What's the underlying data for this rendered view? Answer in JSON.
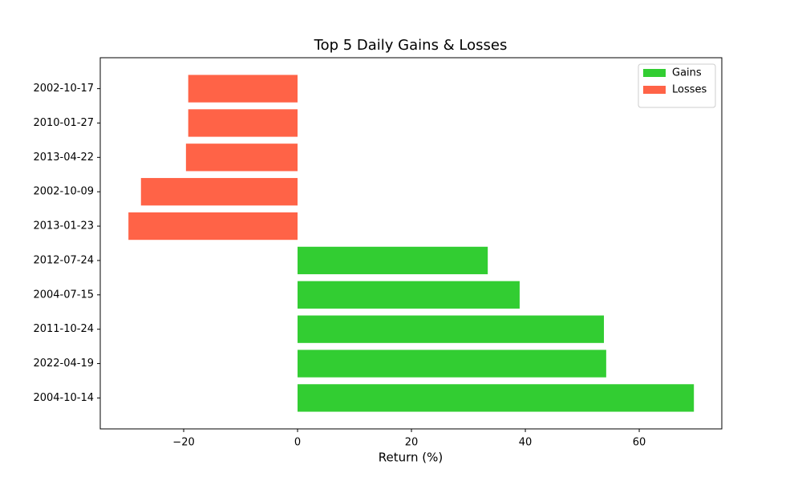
{
  "chart_data": {
    "type": "barh",
    "title": "Top 5 Daily Gains & Losses",
    "xlabel": "Return (%)",
    "categories": [
      "2004-10-14",
      "2022-04-19",
      "2011-10-24",
      "2004-07-15",
      "2012-07-24",
      "2013-01-23",
      "2002-10-09",
      "2013-04-22",
      "2010-01-27",
      "2002-10-17"
    ],
    "series": [
      {
        "name": "Gains",
        "color": "#32cd32",
        "values": [
          69.6,
          54.2,
          53.8,
          39.0,
          33.4,
          null,
          null,
          null,
          null,
          null
        ]
      },
      {
        "name": "Losses",
        "color": "#ff6347",
        "values": [
          null,
          null,
          null,
          null,
          null,
          -29.7,
          -27.5,
          -19.6,
          -19.2,
          -19.2
        ]
      }
    ],
    "xlim": [
      -34.65,
      74.5
    ],
    "xticks": [
      {
        "value": -20,
        "label": "−20"
      },
      0,
      20,
      40,
      60
    ],
    "grid": false,
    "legend": "upper right"
  }
}
